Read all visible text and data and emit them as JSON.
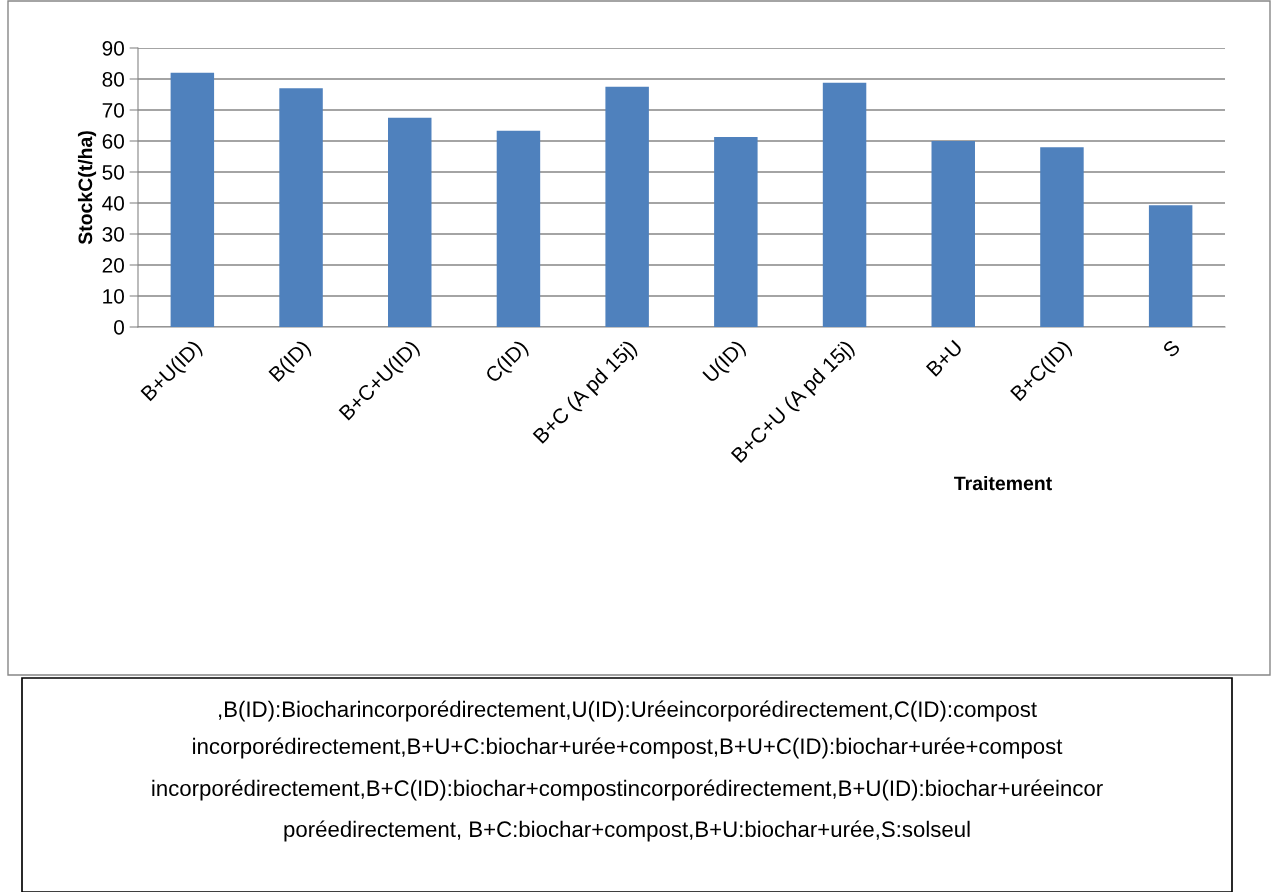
{
  "chart_data": {
    "type": "bar",
    "xlabel": "Traitement",
    "ylabel": "StockC(t/ha)",
    "categories": [
      "B+U(ID)",
      "B(ID)",
      "B+C+U(ID)",
      "C(ID)",
      "B+C (A pd 15j)",
      "U(ID)",
      "B+C+U (A pd 15j)",
      "B+U",
      "B+C(ID)",
      "S"
    ],
    "values": [
      82,
      77,
      67.5,
      63.3,
      77.5,
      61.3,
      78.8,
      60,
      58,
      39.3
    ],
    "color": "#4f81bd",
    "ylim": [
      0,
      90
    ],
    "yticks": [
      0,
      10,
      20,
      30,
      40,
      50,
      60,
      70,
      80,
      90
    ],
    "grid": "y",
    "legend": false,
    "annotations": [
      ",B(ID):Biocharincorporédirectement,U(ID):Uréeincorporédirectement,C(ID):compost",
      "incorporédirectement,B+U+C:biochar+urée+compost,B+U+C(ID):biochar+urée+compost",
      "incorporédirectement,B+C(ID):biochar+compostincorporédirectement,B+U(ID):biochar+uréeincor",
      "poréedirectement, B+C:biochar+compost,B+U:biochar+urée,S:solseul"
    ]
  }
}
